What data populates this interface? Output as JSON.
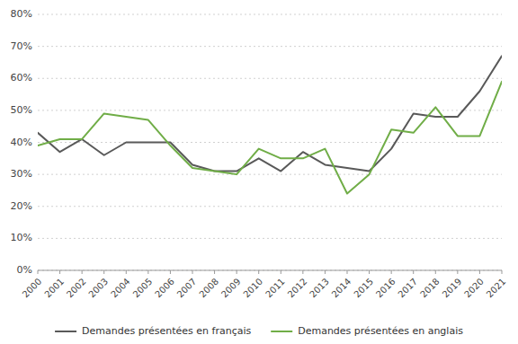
{
  "chart_data": {
    "type": "line",
    "x": [
      2000,
      2001,
      2002,
      2003,
      2004,
      2005,
      2006,
      2007,
      2008,
      2009,
      2010,
      2011,
      2012,
      2013,
      2014,
      2015,
      2016,
      2017,
      2018,
      2019,
      2020,
      2021
    ],
    "series": [
      {
        "name": "Demandes présentées en français",
        "color": "#595959",
        "values": [
          0.43,
          0.37,
          0.41,
          0.36,
          0.4,
          0.4,
          0.4,
          0.33,
          0.31,
          0.31,
          0.35,
          0.31,
          0.37,
          0.33,
          0.32,
          0.31,
          0.38,
          0.49,
          0.48,
          0.48,
          0.56,
          0.67
        ]
      },
      {
        "name": "Demandes présentées en anglais",
        "color": "#70ad47",
        "values": [
          0.39,
          0.41,
          0.41,
          0.49,
          0.48,
          0.47,
          0.39,
          0.32,
          0.31,
          0.3,
          0.38,
          0.35,
          0.35,
          0.38,
          0.24,
          0.3,
          0.44,
          0.43,
          0.51,
          0.42,
          0.42,
          0.59
        ]
      }
    ],
    "xlim": [
      2000,
      2021
    ],
    "xticks": [
      2000,
      2001,
      2002,
      2003,
      2004,
      2005,
      2006,
      2007,
      2008,
      2009,
      2010,
      2011,
      2012,
      2013,
      2014,
      2015,
      2016,
      2017,
      2018,
      2019,
      2020,
      2021
    ],
    "ylim": [
      0.0,
      0.8
    ],
    "yticks": [
      {
        "value": 0.0,
        "label": "0%"
      },
      {
        "value": 0.1,
        "label": "10%"
      },
      {
        "value": 0.2,
        "label": "20%"
      },
      {
        "value": 0.3,
        "label": "30%"
      },
      {
        "value": 0.4,
        "label": "40%"
      },
      {
        "value": 0.5,
        "label": "50%"
      },
      {
        "value": 0.6,
        "label": "60%"
      },
      {
        "value": 0.7,
        "label": "70%"
      },
      {
        "value": 0.8,
        "label": "80%"
      }
    ],
    "grid": true,
    "legend": "bottom"
  }
}
